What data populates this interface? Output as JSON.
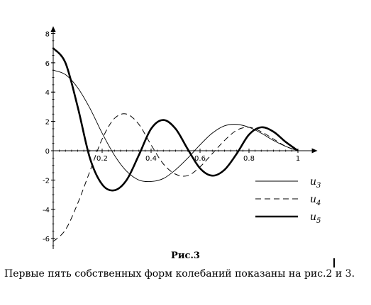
{
  "chart_data": {
    "type": "line",
    "title": "",
    "xlabel": "",
    "ylabel": "",
    "xlim": [
      0,
      1.08
    ],
    "ylim": [
      -7.2,
      8.5
    ],
    "x_ticks": [
      0.2,
      0.4,
      0.6,
      0.8,
      1
    ],
    "x_tick_labels": [
      "0.2",
      "0.4",
      "0.6",
      "0.8",
      "1"
    ],
    "y_ticks": [
      -6,
      -4,
      -2,
      0,
      2,
      4,
      6,
      8
    ],
    "y_tick_labels": [
      "-6",
      "-4",
      "-2",
      "0",
      "2",
      "4",
      "6",
      "8"
    ],
    "grid": false,
    "legend_position": "right",
    "series": [
      {
        "name": "u3",
        "name_base": "u",
        "name_sub": "3",
        "style": "thin-solid",
        "x": [
          0,
          0.05,
          0.1,
          0.15,
          0.2,
          0.25,
          0.3,
          0.35,
          0.4,
          0.45,
          0.5,
          0.55,
          0.6,
          0.65,
          0.7,
          0.75,
          0.8,
          0.85,
          0.9,
          0.95,
          1
        ],
        "y": [
          5.5,
          5.2,
          4.3,
          2.9,
          1.2,
          -0.3,
          -1.4,
          -2.0,
          -2.1,
          -1.9,
          -1.3,
          -0.5,
          0.4,
          1.2,
          1.7,
          1.8,
          1.6,
          1.2,
          0.7,
          0.3,
          0
        ]
      },
      {
        "name": "u4",
        "name_base": "u",
        "name_sub": "4",
        "style": "dashed",
        "x": [
          0,
          0.05,
          0.1,
          0.15,
          0.2,
          0.25,
          0.3,
          0.35,
          0.4,
          0.45,
          0.5,
          0.55,
          0.6,
          0.65,
          0.7,
          0.75,
          0.8,
          0.85,
          0.9,
          0.95,
          1
        ],
        "y": [
          -6.2,
          -5.4,
          -3.6,
          -1.4,
          0.8,
          2.2,
          2.5,
          1.8,
          0.4,
          -0.9,
          -1.6,
          -1.7,
          -1.1,
          -0.2,
          0.7,
          1.4,
          1.6,
          1.3,
          0.8,
          0.3,
          0
        ]
      },
      {
        "name": "u5",
        "name_base": "u",
        "name_sub": "5",
        "style": "thick-solid",
        "x": [
          0,
          0.05,
          0.1,
          0.15,
          0.2,
          0.25,
          0.3,
          0.35,
          0.4,
          0.45,
          0.5,
          0.55,
          0.6,
          0.65,
          0.7,
          0.75,
          0.8,
          0.85,
          0.9,
          0.95,
          1
        ],
        "y": [
          7.0,
          6.0,
          3.0,
          -0.5,
          -2.3,
          -2.7,
          -2.0,
          -0.3,
          1.5,
          2.1,
          1.5,
          0.1,
          -1.2,
          -1.7,
          -1.3,
          -0.2,
          1.1,
          1.6,
          1.3,
          0.6,
          0
        ]
      }
    ]
  },
  "caption": "Рис.3",
  "body_text": "Первые пять собственных форм колебаний показаны на рис.2 и 3."
}
